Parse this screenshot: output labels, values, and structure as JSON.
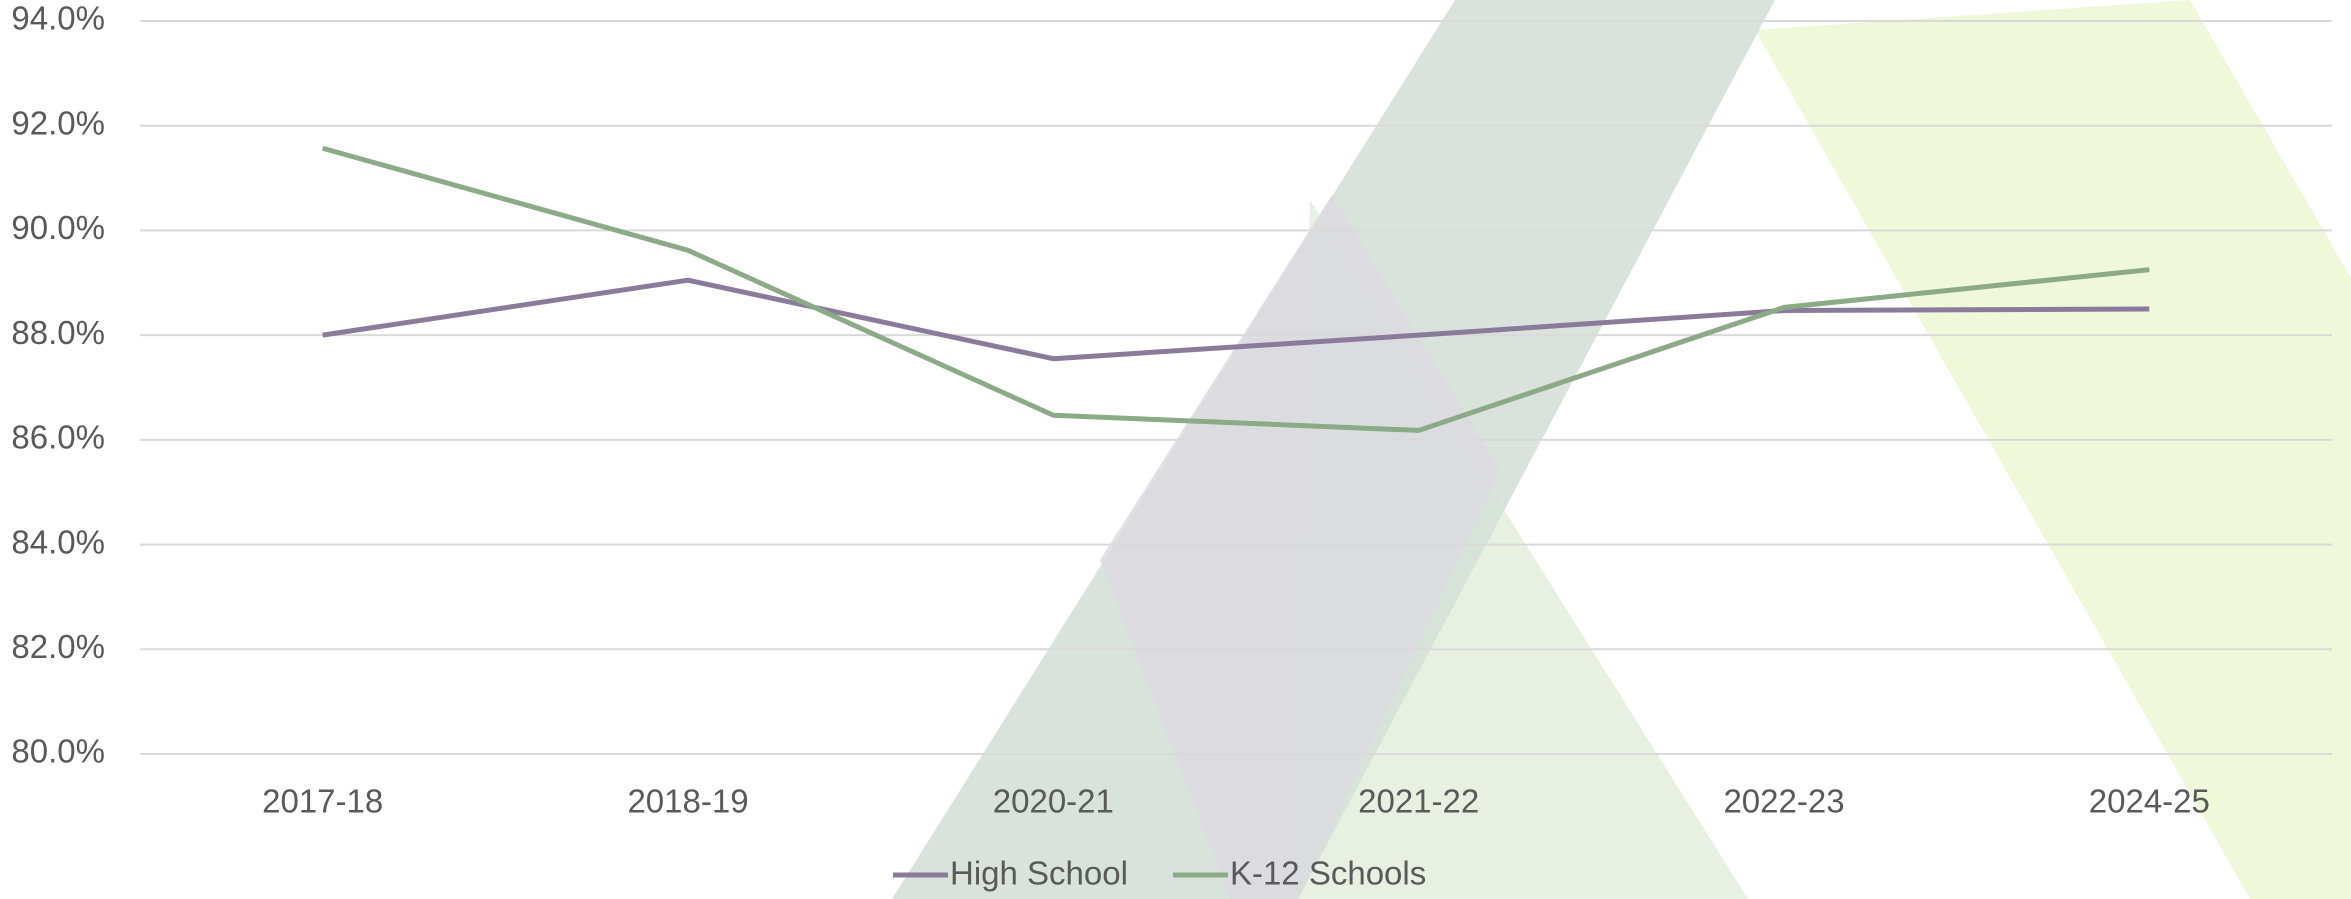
{
  "chart_data": {
    "type": "line",
    "categories": [
      "2017-18",
      "2018-19",
      "2020-21",
      "2021-22",
      "2022-23",
      "2024-25"
    ],
    "series": [
      {
        "name": "High School",
        "color": "#8b7b9b",
        "values": [
          88.0,
          89.05,
          87.55,
          88.0,
          88.47,
          88.5
        ]
      },
      {
        "name": "K-12 Schools",
        "color": "#8aab86",
        "values": [
          91.57,
          89.62,
          86.47,
          86.18,
          88.53,
          89.25
        ]
      }
    ],
    "ylim": [
      80,
      94
    ],
    "yticks": [
      {
        "value": 80,
        "label": "80.0%"
      },
      {
        "value": 82,
        "label": "82.0%"
      },
      {
        "value": 84,
        "label": "84.0%"
      },
      {
        "value": 86,
        "label": "86.0%"
      },
      {
        "value": 88,
        "label": "88.0%"
      },
      {
        "value": 90,
        "label": "90.0%"
      },
      {
        "value": 92,
        "label": "92.0%"
      },
      {
        "value": 94,
        "label": "94.0%"
      }
    ],
    "grid": true,
    "legend": "bottom"
  }
}
